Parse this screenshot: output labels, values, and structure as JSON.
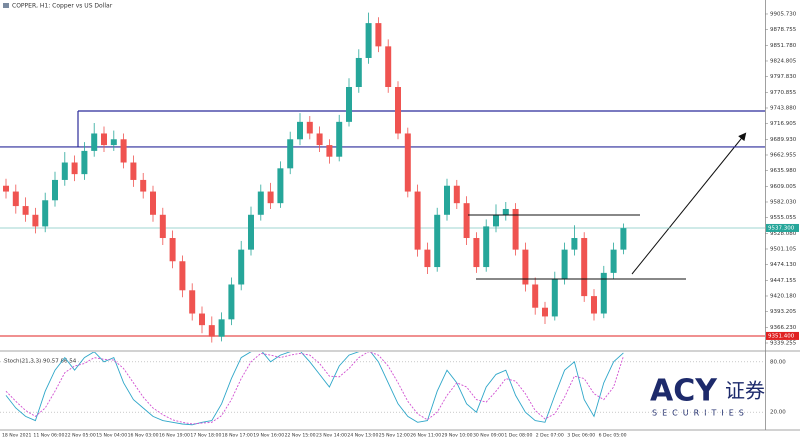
{
  "chart_data": {
    "type": "candlestick",
    "title": "COPPER, H1: Copper vs US Dollar",
    "up_color": "#26a69a",
    "down_color": "#ef5350",
    "open": [
      9610,
      9600,
      9575,
      9560,
      9540,
      9585,
      9620,
      9650,
      9630,
      9670,
      9700,
      9680,
      9690,
      9650,
      9620,
      9600,
      9560,
      9520,
      9480,
      9430,
      9390,
      9370,
      9350,
      9380,
      9440,
      9500,
      9560,
      9600,
      9580,
      9640,
      9690,
      9720,
      9700,
      9680,
      9660,
      9720,
      9780,
      9830,
      9890,
      9850,
      9780,
      9700,
      9600,
      9500,
      9470,
      9560,
      9610,
      9580,
      9520,
      9470,
      9540,
      9560,
      9570,
      9500,
      9440,
      9400,
      9385,
      9450,
      9500,
      9520,
      9420,
      9390,
      9460,
      9500
    ],
    "high": [
      9622,
      9612,
      9590,
      9572,
      9598,
      9634,
      9668,
      9662,
      9685,
      9718,
      9712,
      9705,
      9700,
      9662,
      9632,
      9610,
      9572,
      9533,
      9490,
      9442,
      9402,
      9385,
      9392,
      9452,
      9515,
      9574,
      9612,
      9615,
      9652,
      9703,
      9735,
      9730,
      9712,
      9690,
      9732,
      9795,
      9845,
      9908,
      9900,
      9862,
      9790,
      9710,
      9612,
      9512,
      9572,
      9622,
      9620,
      9592,
      9530,
      9552,
      9578,
      9582,
      9580,
      9512,
      9452,
      9410,
      9462,
      9512,
      9542,
      9530,
      9432,
      9472,
      9512,
      9545
    ],
    "low": [
      9588,
      9562,
      9548,
      9528,
      9530,
      9574,
      9610,
      9618,
      9620,
      9660,
      9668,
      9670,
      9640,
      9608,
      9588,
      9548,
      9508,
      9468,
      9418,
      9378,
      9356,
      9340,
      9342,
      9370,
      9430,
      9490,
      9550,
      9570,
      9572,
      9630,
      9680,
      9690,
      9668,
      9648,
      9652,
      9712,
      9770,
      9820,
      9840,
      9770,
      9690,
      9590,
      9488,
      9458,
      9462,
      9550,
      9570,
      9508,
      9460,
      9462,
      9530,
      9550,
      9490,
      9428,
      9388,
      9372,
      9378,
      9440,
      9490,
      9410,
      9378,
      9382,
      9450,
      9492
    ],
    "close": [
      9600,
      9575,
      9560,
      9540,
      9585,
      9620,
      9650,
      9630,
      9670,
      9700,
      9680,
      9690,
      9650,
      9620,
      9600,
      9560,
      9520,
      9480,
      9430,
      9390,
      9370,
      9350,
      9380,
      9440,
      9500,
      9560,
      9600,
      9580,
      9640,
      9690,
      9720,
      9700,
      9680,
      9660,
      9720,
      9780,
      9830,
      9890,
      9850,
      9780,
      9700,
      9600,
      9500,
      9470,
      9560,
      9610,
      9580,
      9520,
      9470,
      9540,
      9560,
      9570,
      9500,
      9440,
      9400,
      9385,
      9450,
      9500,
      9520,
      9420,
      9390,
      9460,
      9500,
      9537
    ],
    "ylim": [
      9327.2,
      9929.8
    ],
    "yticks": [
      9339.255,
      {
        "value": 9366.23,
        "label": "9366.230"
      },
      9393.205,
      {
        "value": 9420.18,
        "label": "9420.180"
      },
      9447.155,
      {
        "value": 9474.13,
        "label": "9474.130"
      },
      9501.105,
      {
        "value": 9528.08,
        "label": "9528.080"
      },
      9555.055,
      {
        "value": 9582.03,
        "label": "9582.030"
      },
      9609.005,
      {
        "value": 9635.98,
        "label": "9635.980"
      },
      9662.955,
      {
        "value": 9689.93,
        "label": "9689.930"
      },
      9716.905,
      {
        "value": 9743.88,
        "label": "9743.880"
      },
      9770.855,
      {
        "value": 9797.83,
        "label": "9797.830"
      },
      9824.805,
      {
        "value": 9851.78,
        "label": "9851.780"
      },
      9878.755,
      {
        "value": 9905.73,
        "label": "9905.730"
      }
    ],
    "time_labels": [
      "18 Nov 2021",
      "11 Nov 06:00",
      "22 Nov 05:00",
      "15 Nov 04:00",
      "16 Nov 03:00",
      "16 Nov 19:00",
      "17 Nov 18:00",
      "18 Nov 17:00",
      "19 Nov 16:00",
      "22 Nov 15:00",
      "23 Nov 14:00",
      "24 Nov 13:00",
      "25 Nov 12:00",
      "26 Nov 11:00",
      "29 Nov 10:00",
      "30 Nov 09:00",
      "1 Dec 08:00",
      "2 Dec 07:00",
      "3 Dec 06:00",
      "6 Dec 05:00"
    ],
    "price_line": {
      "value": 9537.3,
      "label": "9537.300"
    },
    "alert_line": {
      "value": 9351.4,
      "label": "9351.400"
    },
    "zone": [
      9676.8,
      9738.7
    ],
    "levels": [
      9559.7,
      9449.5
    ],
    "stochastic": {
      "type": "line",
      "title": "Stoch(21,3,3) 90.57 86.54",
      "ylim": [
        0,
        100
      ],
      "yticks": [
        {
          "value": 80,
          "label": "80.00"
        },
        {
          "value": 20,
          "label": "20.00"
        }
      ],
      "series": [
        {
          "color": "#2fa7c9",
          "values": [
            40,
            25,
            15,
            10,
            45,
            70,
            85,
            70,
            85,
            92,
            80,
            85,
            55,
            35,
            25,
            15,
            10,
            8,
            6,
            5,
            8,
            10,
            30,
            60,
            85,
            92,
            94,
            80,
            88,
            92,
            93,
            80,
            65,
            50,
            75,
            88,
            92,
            95,
            80,
            55,
            30,
            15,
            8,
            10,
            45,
            70,
            55,
            30,
            20,
            50,
            65,
            70,
            40,
            20,
            10,
            8,
            40,
            70,
            80,
            35,
            15,
            55,
            80,
            90.57
          ]
        },
        {
          "color": "#d14fd1",
          "values": [
            45,
            33,
            22,
            15,
            25,
            45,
            67,
            75,
            78,
            85,
            83,
            82,
            72,
            55,
            38,
            25,
            17,
            11,
            8,
            6,
            7,
            8,
            16,
            35,
            60,
            80,
            90,
            88,
            85,
            88,
            90,
            88,
            78,
            63,
            62,
            72,
            85,
            92,
            88,
            75,
            55,
            33,
            18,
            11,
            20,
            40,
            55,
            50,
            35,
            32,
            45,
            60,
            57,
            42,
            22,
            12,
            18,
            38,
            63,
            60,
            42,
            35,
            50,
            86.54
          ]
        }
      ]
    }
  },
  "logo": {
    "brand": "ACY",
    "cn": "证券",
    "sub": "SECURITIES"
  }
}
